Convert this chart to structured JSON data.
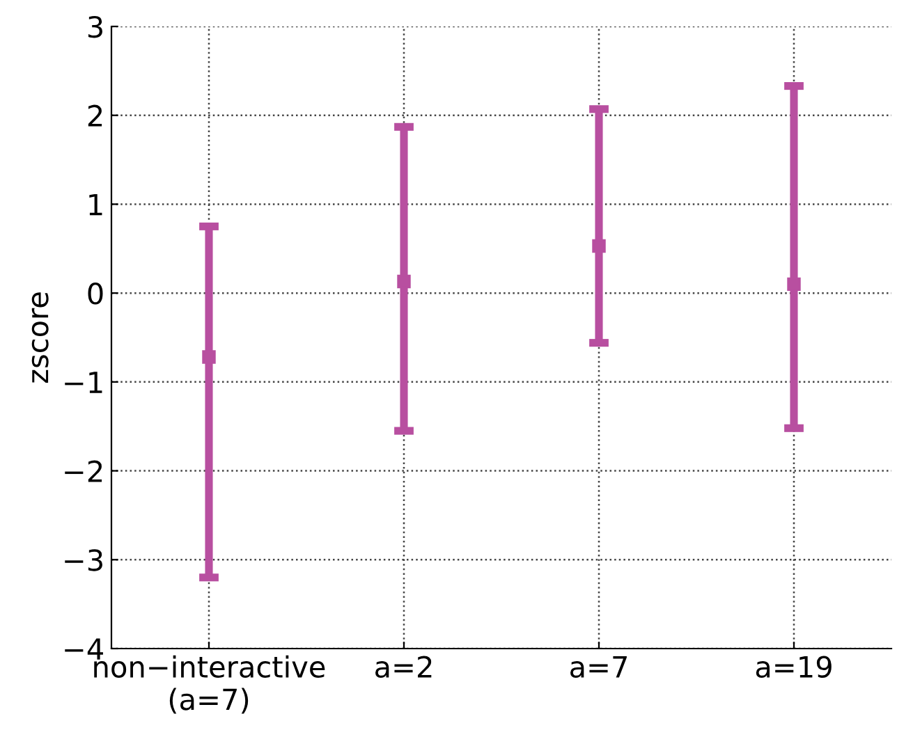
{
  "chart_data": {
    "type": "scatter",
    "ylabel": "zscore",
    "categories": [
      "non−interactive\n(a=7)",
      "a=2",
      "a=7",
      "a=19"
    ],
    "series": [
      {
        "color": "#b84fa0",
        "values": [
          -0.72,
          0.13,
          0.53,
          0.1
        ],
        "errors": [
          [
            -3.2,
            0.75
          ],
          [
            -1.55,
            1.87
          ],
          [
            -0.56,
            2.07
          ],
          [
            -1.52,
            2.33
          ]
        ]
      }
    ],
    "ylim": [
      -4,
      3
    ],
    "yticks": [
      {
        "value": -4,
        "label": "−4"
      },
      {
        "value": -3,
        "label": "−3"
      },
      {
        "value": -2,
        "label": "−2"
      },
      {
        "value": -1,
        "label": "−1"
      },
      0,
      1,
      2,
      3
    ],
    "grid": true,
    "marker": "square",
    "legend": false
  }
}
